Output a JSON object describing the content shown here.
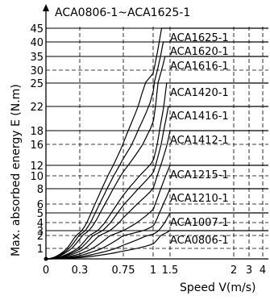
{
  "chart_data": {
    "type": "line",
    "title": "ACA0806-1~ACA1625-1",
    "xlabel": "Speed V(m/s)",
    "ylabel": "Max. absorbed energy E (N.m)",
    "x_ticks": [
      "0",
      "0.3",
      "0.75",
      "1",
      "1.5",
      "2",
      "3",
      "4"
    ],
    "y_ticks": [
      "1",
      "2",
      "3",
      "4",
      "5",
      "6",
      "8",
      "10",
      "12",
      "16",
      "18",
      "22",
      "25",
      "30",
      "35",
      "40",
      "45"
    ],
    "xlim": [
      0,
      4
    ],
    "ylim": [
      0,
      45
    ],
    "grid": true,
    "series": [
      {
        "name": "ACA1625-1",
        "max_energy": 45,
        "knee_speed": 1.25
      },
      {
        "name": "ACA1620-1",
        "max_energy": 40,
        "knee_speed": 1.3
      },
      {
        "name": "ACA1616-1",
        "max_energy": 35,
        "knee_speed": 1.35
      },
      {
        "name": "ACA1420-1",
        "max_energy": 25,
        "knee_speed": 1.4
      },
      {
        "name": "ACA1416-1",
        "max_energy": 22,
        "knee_speed": 1.45
      },
      {
        "name": "ACA1412-1",
        "max_energy": 18,
        "knee_speed": 1.5
      },
      {
        "name": "ACA1215-1",
        "max_energy": 12,
        "knee_speed": 1.5
      },
      {
        "name": "ACA1210-1",
        "max_energy": 8,
        "knee_speed": 1.5
      },
      {
        "name": "ACA1007-1",
        "max_energy": 5,
        "knee_speed": 1.5
      },
      {
        "name": "ACA0806-1",
        "max_energy": 3,
        "knee_speed": 1.5
      }
    ]
  }
}
